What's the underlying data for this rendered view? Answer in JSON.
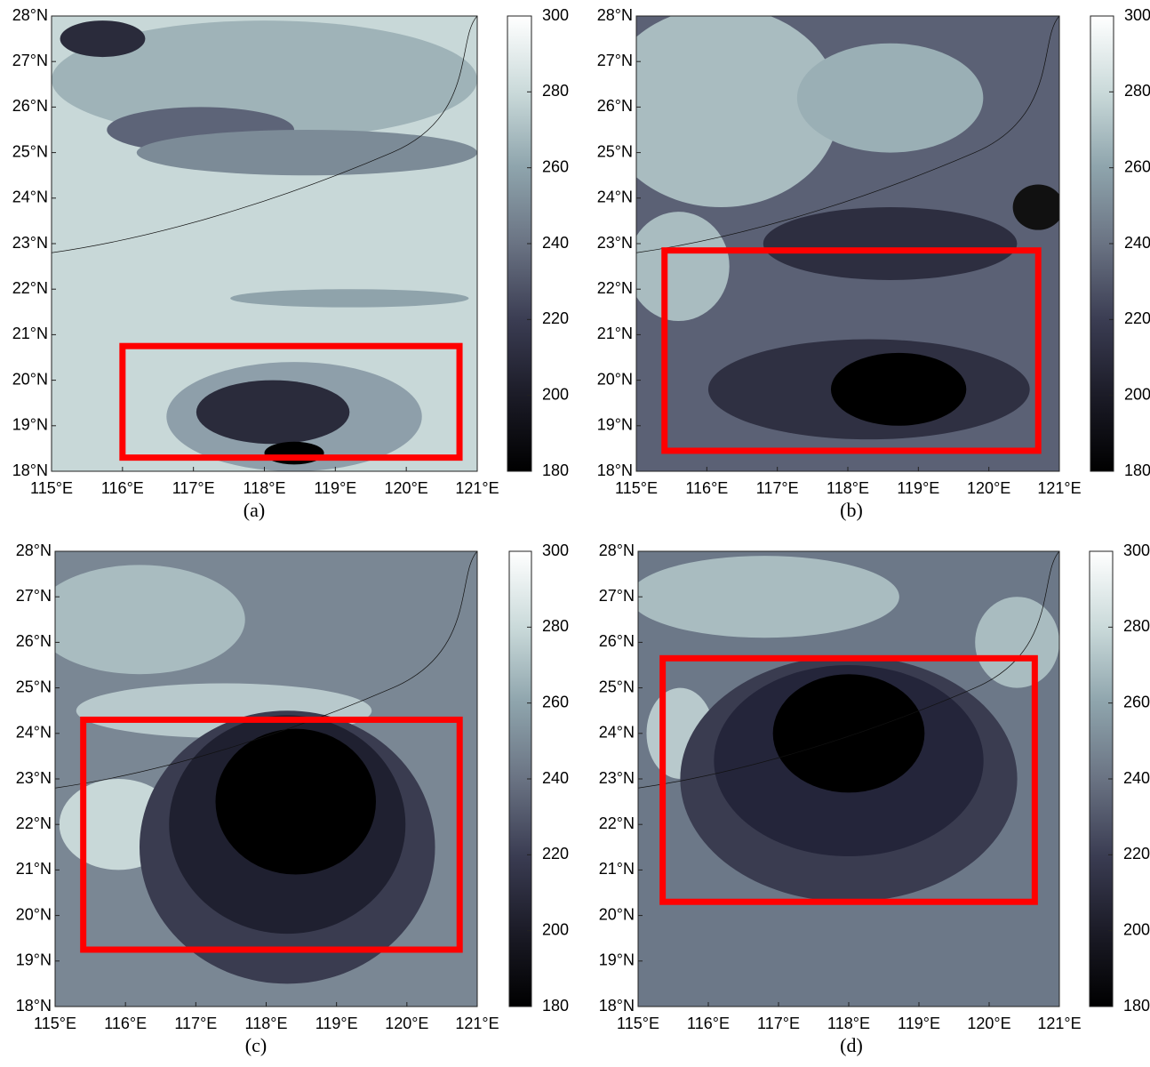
{
  "axes": {
    "xlim": [
      115,
      121
    ],
    "ylim": [
      18,
      28
    ],
    "xticks": [
      {
        "value": 115,
        "label": "115°E"
      },
      {
        "value": 116,
        "label": "116°E"
      },
      {
        "value": 117,
        "label": "117°E"
      },
      {
        "value": 118,
        "label": "118°E"
      },
      {
        "value": 119,
        "label": "119°E"
      },
      {
        "value": 120,
        "label": "120°E"
      },
      {
        "value": 121,
        "label": "121°E"
      }
    ],
    "yticks": [
      {
        "value": 18,
        "label": "18°N"
      },
      {
        "value": 19,
        "label": "19°N"
      },
      {
        "value": 20,
        "label": "20°N"
      },
      {
        "value": 21,
        "label": "21°N"
      },
      {
        "value": 22,
        "label": "22°N"
      },
      {
        "value": 23,
        "label": "23°N"
      },
      {
        "value": 24,
        "label": "24°N"
      },
      {
        "value": 25,
        "label": "25°N"
      },
      {
        "value": 26,
        "label": "26°N"
      },
      {
        "value": 27,
        "label": "27°N"
      },
      {
        "value": 28,
        "label": "28°N"
      }
    ]
  },
  "colorbar": {
    "lim": [
      180,
      300
    ],
    "ticks": [
      180,
      200,
      220,
      240,
      260,
      280,
      300
    ]
  },
  "box_color": "#ff0000",
  "panels": [
    {
      "label": "(a)",
      "box": {
        "lon": [
          116.0,
          120.75
        ],
        "lat": [
          18.3,
          20.75
        ]
      }
    },
    {
      "label": "(b)",
      "box": {
        "lon": [
          115.4,
          120.7
        ],
        "lat": [
          18.45,
          22.85
        ]
      }
    },
    {
      "label": "(c)",
      "box": {
        "lon": [
          115.4,
          120.75
        ],
        "lat": [
          19.25,
          24.3
        ]
      }
    },
    {
      "label": "(d)",
      "box": {
        "lon": [
          115.35,
          120.65
        ],
        "lat": [
          20.3,
          25.65
        ]
      }
    }
  ]
}
